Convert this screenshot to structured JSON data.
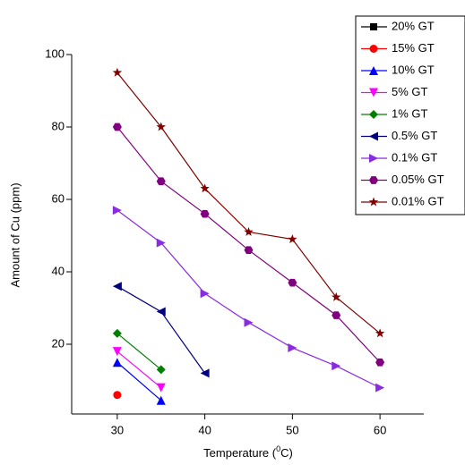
{
  "chart_data": {
    "type": "line",
    "x_label": {
      "text": "Temperature (",
      "sup": "0",
      "end": "C)"
    },
    "y_label": "Amount of Cu (ppm)",
    "x": [
      30,
      35,
      40,
      45,
      50,
      55,
      60
    ],
    "xlim": [
      25,
      65
    ],
    "xticks": [
      30,
      40,
      50,
      60
    ],
    "ylim": [
      0,
      100
    ],
    "yticks": [
      20,
      40,
      60,
      80,
      100
    ],
    "legend": "top-right",
    "series": [
      {
        "name": "20% GT",
        "color": "#000000",
        "marker": "square",
        "values": [
          null,
          null,
          null,
          null,
          null,
          null,
          null
        ]
      },
      {
        "name": "15% GT",
        "color": "#ff0000",
        "marker": "circle",
        "values": [
          6,
          null,
          null,
          null,
          null,
          null,
          null
        ]
      },
      {
        "name": "10% GT",
        "color": "#0000ff",
        "marker": "triangle-up",
        "values": [
          15,
          4.5,
          null,
          null,
          null,
          null,
          null
        ]
      },
      {
        "name": "5% GT",
        "color": "#ff00ff",
        "marker": "triangle-down",
        "values": [
          18,
          8,
          null,
          null,
          null,
          null,
          null
        ]
      },
      {
        "name": "1% GT",
        "color": "#008000",
        "marker": "diamond",
        "values": [
          23,
          13,
          null,
          null,
          null,
          null,
          null
        ]
      },
      {
        "name": "0.5% GT",
        "color": "#000080",
        "marker": "triangle-left",
        "values": [
          36,
          29,
          12,
          null,
          null,
          null,
          null
        ]
      },
      {
        "name": "0.1% GT",
        "color": "#8a2be2",
        "marker": "triangle-right",
        "values": [
          57,
          48,
          34,
          26,
          19,
          14,
          8
        ]
      },
      {
        "name": "0.05% GT",
        "color": "#800080",
        "marker": "hexagon",
        "values": [
          80,
          65,
          56,
          46,
          37,
          28,
          15
        ]
      },
      {
        "name": "0.01% GT",
        "color": "#800000",
        "marker": "star",
        "values": [
          95,
          80,
          63,
          51,
          49,
          33,
          23
        ]
      }
    ]
  }
}
